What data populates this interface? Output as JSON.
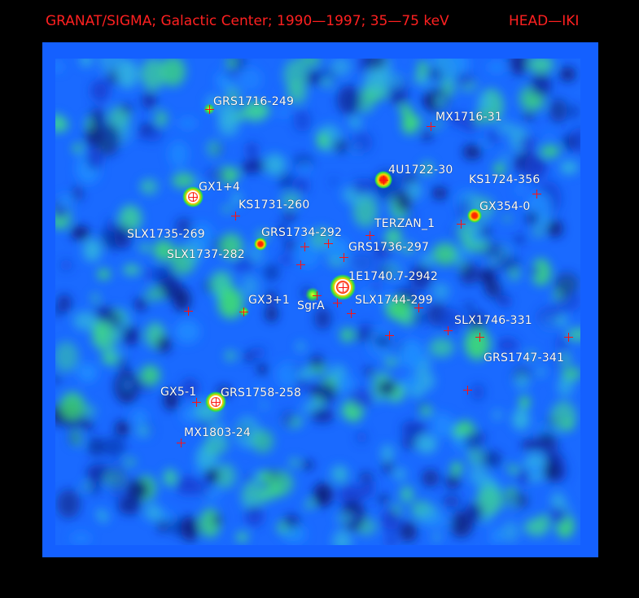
{
  "header": {
    "title": "GRANAT/SIGMA;  Galactic Center;  1990—1997;  35—75 keV",
    "institute": "HEAD—IKI"
  },
  "colors": {
    "background": "#000000",
    "frame": "#1460ff",
    "title_red": "#ff2020",
    "marker_red": "#ff1010",
    "label_white": "#ffffff"
  },
  "sources": [
    {
      "name": "GRS1716-249"
    },
    {
      "name": "MX1716-31"
    },
    {
      "name": "4U1722-30"
    },
    {
      "name": "KS1724-356"
    },
    {
      "name": "GX1+4"
    },
    {
      "name": "KS1731-260"
    },
    {
      "name": "GX354-0"
    },
    {
      "name": "TERZAN_1"
    },
    {
      "name": "SLX1735-269"
    },
    {
      "name": "GRS1734-292"
    },
    {
      "name": "GRS1736-297"
    },
    {
      "name": "SLX1737-282"
    },
    {
      "name": "1E1740.7-2942"
    },
    {
      "name": "GX3+1"
    },
    {
      "name": "SgrA"
    },
    {
      "name": "SLX1744-299"
    },
    {
      "name": "SLX1746-331"
    },
    {
      "name": "GRS1747-341"
    },
    {
      "name": "GX5-1"
    },
    {
      "name": "GRS1758-258"
    },
    {
      "name": "MX1803-24"
    }
  ]
}
